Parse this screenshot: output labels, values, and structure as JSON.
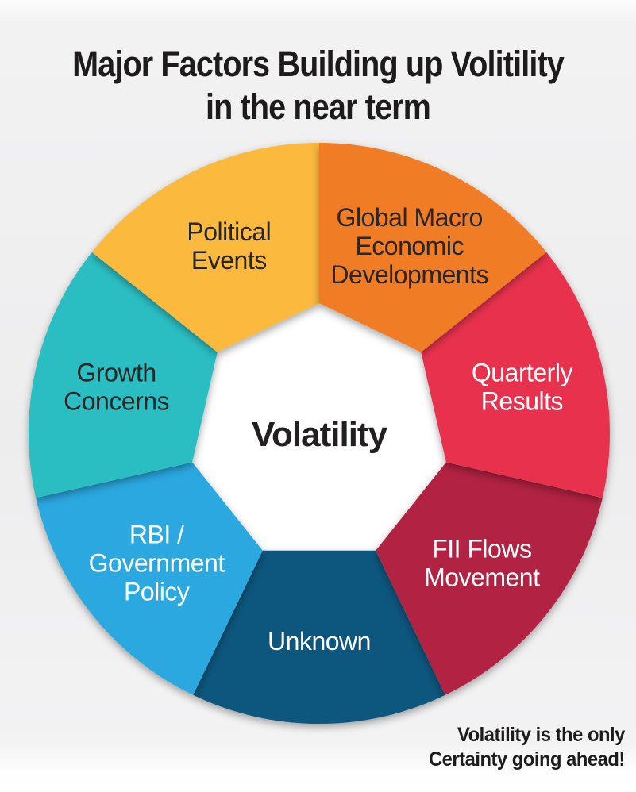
{
  "title": {
    "line1": "Major Factors Building up Volitility",
    "line2": "in the near term"
  },
  "footer": {
    "line1": "Volatility is the only",
    "line2": "Certainty going ahead!"
  },
  "wheel": {
    "center_label": "Volatility",
    "center_text_color": "#231f20",
    "inner_fill": "#ffffff",
    "segments": [
      {
        "id": "global-macro-economic-developments",
        "label": "Global Macro Economic Developments",
        "lines": [
          "Global Macro",
          "Economic",
          "Developments"
        ],
        "color": "#F07D26",
        "text_color": "#2a2526",
        "z": 7
      },
      {
        "id": "quarterly-results",
        "label": "Quarterly Results",
        "lines": [
          "Quarterly",
          "Results"
        ],
        "color": "#E8334E",
        "text_color": "#ffffff",
        "z": 4
      },
      {
        "id": "fii-flows-movement",
        "label": "FII Flows Movement",
        "lines": [
          "FII Flows",
          "Movement"
        ],
        "color": "#B22042",
        "text_color": "#ffffff",
        "z": 2
      },
      {
        "id": "unknown",
        "label": "Unknown",
        "lines": [
          "Unknown"
        ],
        "color": "#0E567D",
        "text_color": "#ffffff",
        "z": 1
      },
      {
        "id": "rbi-government-policy",
        "label": "RBI / Government Policy",
        "lines": [
          "RBI /",
          "Government",
          "Policy"
        ],
        "color": "#29A8DF",
        "text_color": "#ffffff",
        "z": 3
      },
      {
        "id": "growth-concerns",
        "label": "Growth Concerns",
        "lines": [
          "Growth",
          "Concerns"
        ],
        "color": "#2ABEC3",
        "text_color": "#2a2526",
        "z": 5
      },
      {
        "id": "political-events",
        "label": "Political Events",
        "lines": [
          "Political",
          "Events"
        ],
        "color": "#FBB93E",
        "text_color": "#2a2526",
        "z": 6
      }
    ]
  },
  "chart_data": {
    "type": "pie",
    "title": "Major Factors Building up Volitility in the near term",
    "center_label": "Volatility",
    "categories": [
      "Global Macro Economic Developments",
      "Quarterly Results",
      "FII Flows Movement",
      "Unknown",
      "RBI / Government Policy",
      "Growth Concerns",
      "Political Events"
    ],
    "values": [
      1,
      1,
      1,
      1,
      1,
      1,
      1
    ],
    "colors": [
      "#F07D26",
      "#E8334E",
      "#B22042",
      "#0E567D",
      "#29A8DF",
      "#2ABEC3",
      "#FBB93E"
    ],
    "annotation": "Volatility is the only Certainty going ahead!",
    "legend_position": "none"
  }
}
